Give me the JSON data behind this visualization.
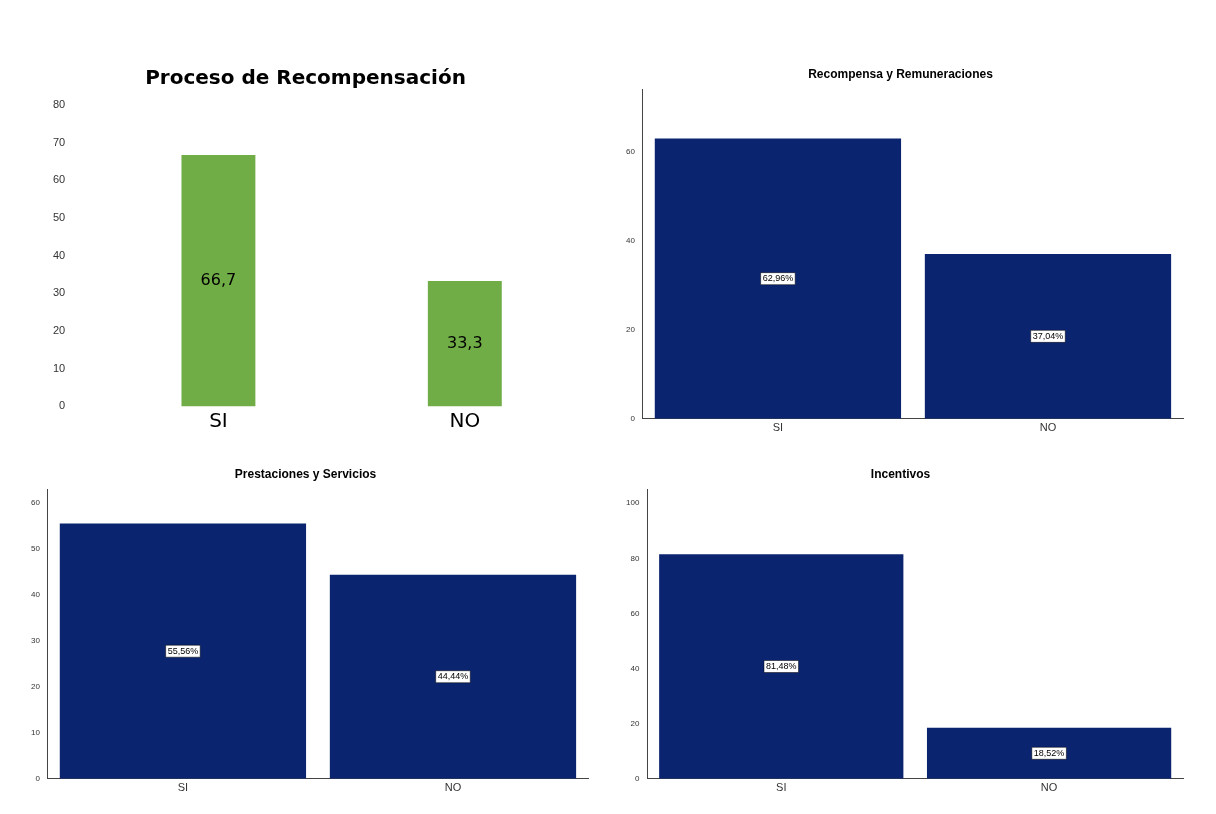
{
  "chart_data": [
    {
      "type": "bar",
      "title": "Proceso de Recompensación",
      "categories": [
        "SI",
        "NO"
      ],
      "values": [
        66.7,
        33.3
      ],
      "value_labels": [
        "66,7",
        "33,3"
      ],
      "color": "#70ad47",
      "ylim": [
        0,
        80
      ],
      "yticks": [
        0,
        10,
        20,
        30,
        40,
        50,
        60,
        70,
        80
      ],
      "grid": false
    },
    {
      "type": "bar",
      "title": "Recompensa y Remuneraciones",
      "categories": [
        "SI",
        "NO"
      ],
      "values": [
        62.96,
        37.04
      ],
      "value_labels": [
        "62,96%",
        "37,04%"
      ],
      "color": "#0b2470",
      "ylim": [
        0,
        74
      ],
      "yticks": [
        0,
        20,
        40,
        60
      ],
      "grid": false
    },
    {
      "type": "bar",
      "title": "Prestaciones y Servicios",
      "categories": [
        "SI",
        "NO"
      ],
      "values": [
        55.56,
        44.44
      ],
      "value_labels": [
        "55,56%",
        "44,44%"
      ],
      "color": "#0b2470",
      "ylim": [
        0,
        63
      ],
      "yticks": [
        0,
        10,
        20,
        30,
        40,
        50,
        60
      ],
      "grid": false
    },
    {
      "type": "bar",
      "title": "Incentivos",
      "categories": [
        "SI",
        "NO"
      ],
      "values": [
        81.48,
        18.52
      ],
      "value_labels": [
        "81,48%",
        "18,52%"
      ],
      "color": "#0b2470",
      "ylim": [
        0,
        105
      ],
      "yticks": [
        0,
        20,
        40,
        60,
        80,
        100
      ],
      "grid": false
    }
  ]
}
